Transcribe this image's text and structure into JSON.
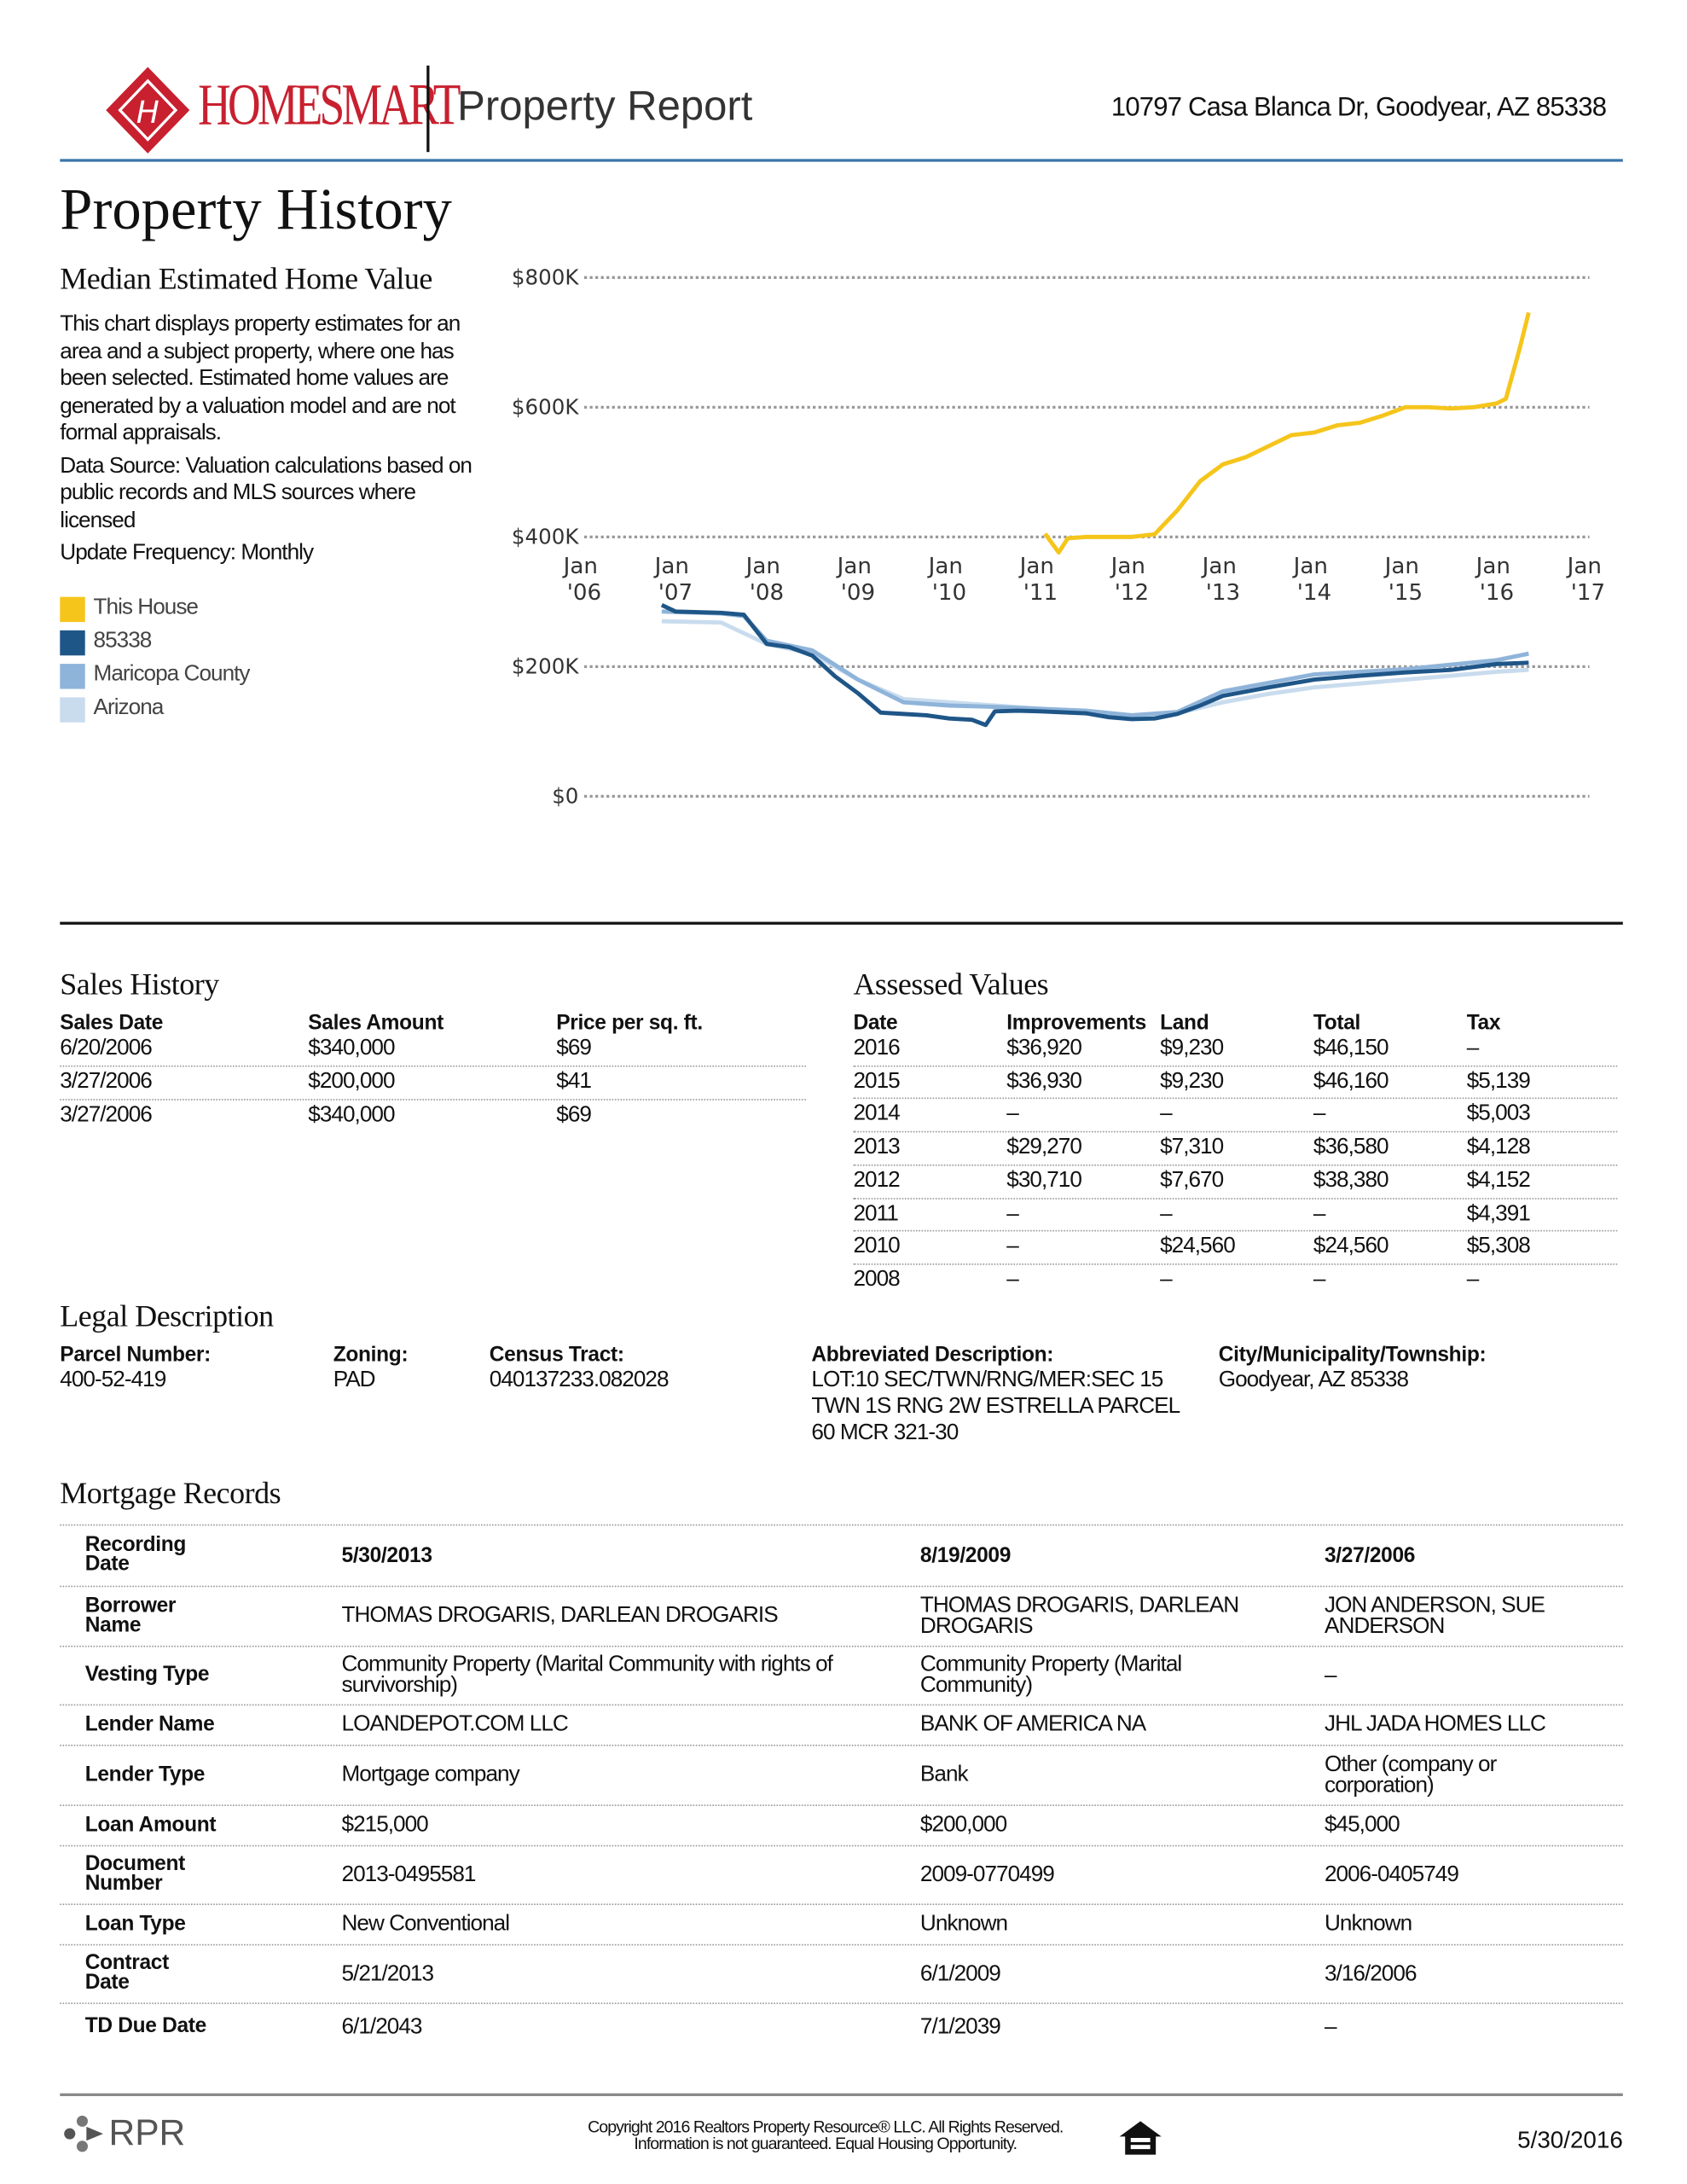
{
  "header": {
    "brand": "HOMESMART",
    "report_title": "Property Report",
    "address": "10797 Casa Blanca Dr, Goodyear, AZ 85338"
  },
  "page_title": "Property History",
  "chart_description": [
    "This chart displays property estimates for an area and a subject property, where one has been selected. Estimated home values are generated by a valuation model and are not formal appraisals.",
    "Data Source: Valuation calculations based on public records and MLS sources where licensed",
    "Update Frequency: Monthly"
  ],
  "chart_data": {
    "type": "line",
    "title": "Median Estimated Home Value",
    "xlim": [
      2006,
      2017
    ],
    "xticks": [
      {
        "value": 2006,
        "label": "Jan '06"
      },
      {
        "value": 2007,
        "label": "Jan '07"
      },
      {
        "value": 2008,
        "label": "Jan '08"
      },
      {
        "value": 2009,
        "label": "Jan '09"
      },
      {
        "value": 2010,
        "label": "Jan '10"
      },
      {
        "value": 2011,
        "label": "Jan '11"
      },
      {
        "value": 2012,
        "label": "Jan '12"
      },
      {
        "value": 2013,
        "label": "Jan '13"
      },
      {
        "value": 2014,
        "label": "Jan '14"
      },
      {
        "value": 2015,
        "label": "Jan '15"
      },
      {
        "value": 2016,
        "label": "Jan '16"
      },
      {
        "value": 2017,
        "label": "Jan '17"
      }
    ],
    "ylim": [
      0,
      800000
    ],
    "yticks": [
      {
        "value": 0,
        "label": "$0"
      },
      {
        "value": 200000,
        "label": "$200K"
      },
      {
        "value": 400000,
        "label": "$400K"
      },
      {
        "value": 600000,
        "label": "$600K"
      },
      {
        "value": 800000,
        "label": "$800K"
      }
    ],
    "grid": true,
    "series": [
      {
        "name": "Arizona",
        "color": "#c9dcee",
        "x": [
          2006.85,
          2007.5,
          2008.0,
          2008.5,
          2009.0,
          2009.5,
          2010.0,
          2010.5,
          2011.0,
          2011.5,
          2012.0,
          2012.5,
          2013.0,
          2013.5,
          2014.0,
          2014.5,
          2015.0,
          2015.5,
          2016.0,
          2016.35
        ],
        "values": [
          270000,
          268000,
          235000,
          220000,
          180000,
          150000,
          145000,
          140000,
          135000,
          130000,
          125000,
          128000,
          145000,
          158000,
          168000,
          174000,
          180000,
          186000,
          192000,
          195000
        ]
      },
      {
        "name": "Maricopa County",
        "color": "#8fb4da",
        "x": [
          2006.85,
          2007.5,
          2007.75,
          2008.0,
          2008.5,
          2009.0,
          2009.5,
          2010.0,
          2010.5,
          2011.0,
          2011.5,
          2012.0,
          2012.5,
          2013.0,
          2013.5,
          2014.0,
          2014.5,
          2015.0,
          2015.5,
          2016.0,
          2016.35
        ],
        "values": [
          285000,
          282000,
          278000,
          240000,
          225000,
          180000,
          145000,
          140000,
          138000,
          135000,
          132000,
          125000,
          130000,
          162000,
          175000,
          188000,
          192000,
          196000,
          203000,
          210000,
          220000
        ]
      },
      {
        "name": "85338",
        "color": "#1f5688",
        "x": [
          2006.85,
          2007.0,
          2007.5,
          2007.75,
          2008.0,
          2008.25,
          2008.5,
          2008.75,
          2009.0,
          2009.25,
          2009.5,
          2009.75,
          2010.0,
          2010.25,
          2010.4,
          2010.5,
          2010.75,
          2011.0,
          2011.5,
          2011.75,
          2012.0,
          2012.25,
          2012.5,
          2012.75,
          2013.0,
          2013.5,
          2014.0,
          2014.5,
          2015.0,
          2015.5,
          2016.0,
          2016.35
        ],
        "values": [
          295000,
          285000,
          283000,
          280000,
          235000,
          230000,
          217000,
          185000,
          159000,
          129000,
          127000,
          125000,
          120000,
          118000,
          110000,
          131000,
          132000,
          131000,
          128000,
          122000,
          119000,
          120000,
          127000,
          140000,
          155000,
          168000,
          180000,
          186000,
          191000,
          195000,
          204000,
          206000
        ]
      },
      {
        "name": "This House",
        "color": "#f5c51c",
        "x": [
          2011.05,
          2011.2,
          2011.3,
          2011.5,
          2012.0,
          2012.25,
          2012.5,
          2012.75,
          2013.0,
          2013.25,
          2013.5,
          2013.75,
          2014.0,
          2014.25,
          2014.5,
          2014.75,
          2015.0,
          2015.25,
          2015.5,
          2015.75,
          2016.0,
          2016.1,
          2016.25,
          2016.35
        ],
        "values": [
          405000,
          376000,
          398000,
          400000,
          400000,
          404000,
          441000,
          486000,
          512000,
          523000,
          540000,
          557000,
          561000,
          572000,
          576000,
          587000,
          600000,
          600000,
          598000,
          600000,
          606000,
          613000,
          690000,
          746000
        ]
      }
    ]
  },
  "legend_order": [
    "This House",
    "85338",
    "Maricopa County",
    "Arizona"
  ],
  "sales_history": {
    "title": "Sales History",
    "columns": [
      "Sales Date",
      "Sales Amount",
      "Price per sq. ft."
    ],
    "rows": [
      [
        "6/20/2006",
        "$340,000",
        "$69"
      ],
      [
        "3/27/2006",
        "$200,000",
        "$41"
      ],
      [
        "3/27/2006",
        "$340,000",
        "$69"
      ]
    ]
  },
  "assessed_values": {
    "title": "Assessed Values",
    "columns": [
      "Date",
      "Improvements",
      "Land",
      "Total",
      "Tax"
    ],
    "rows": [
      [
        "2016",
        "$36,920",
        "$9,230",
        "$46,150",
        "–"
      ],
      [
        "2015",
        "$36,930",
        "$9,230",
        "$46,160",
        "$5,139"
      ],
      [
        "2014",
        "–",
        "–",
        "–",
        "$5,003"
      ],
      [
        "2013",
        "$29,270",
        "$7,310",
        "$36,580",
        "$4,128"
      ],
      [
        "2012",
        "$30,710",
        "$7,670",
        "$38,380",
        "$4,152"
      ],
      [
        "2011",
        "–",
        "–",
        "–",
        "$4,391"
      ],
      [
        "2010",
        "–",
        "$24,560",
        "$24,560",
        "$5,308"
      ],
      [
        "2008",
        "–",
        "–",
        "–",
        "–"
      ]
    ]
  },
  "legal_description": {
    "title": "Legal Description",
    "fields": [
      {
        "label": "Parcel Number:",
        "value": "400-52-419"
      },
      {
        "label": "Zoning:",
        "value": "PAD"
      },
      {
        "label": "Census Tract:",
        "value": "040137233.082028"
      },
      {
        "label": "Abbreviated Description:",
        "value": "LOT:10 SEC/TWN/RNG/MER:SEC 15 TWN 1S RNG 2W ESTRELLA PARCEL 60 MCR 321-30"
      },
      {
        "label": "City/Municipality/Township:",
        "value": "Goodyear, AZ 85338"
      }
    ]
  },
  "mortgage_records": {
    "title": "Mortgage Records",
    "rows": [
      {
        "label": "Recording Date",
        "values": [
          "5/30/2013",
          "8/19/2009",
          "3/27/2006"
        ]
      },
      {
        "label": "Borrower Name",
        "values": [
          "THOMAS DROGARIS, DARLEAN DROGARIS",
          "THOMAS DROGARIS, DARLEAN DROGARIS",
          "JON ANDERSON, SUE ANDERSON"
        ]
      },
      {
        "label": "Vesting Type",
        "values": [
          "Community Property (Marital Community with rights of survivorship)",
          "Community Property (Marital Community)",
          "–"
        ]
      },
      {
        "label": "Lender Name",
        "values": [
          "LOANDEPOT.COM LLC",
          "BANK OF AMERICA NA",
          "JHL JADA HOMES LLC"
        ]
      },
      {
        "label": "Lender Type",
        "values": [
          "Mortgage company",
          "Bank",
          "Other (company or corporation)"
        ]
      },
      {
        "label": "Loan Amount",
        "values": [
          "$215,000",
          "$200,000",
          "$45,000"
        ]
      },
      {
        "label": "Document Number",
        "values": [
          "2013-0495581",
          "2009-0770499",
          "2006-0405749"
        ]
      },
      {
        "label": "Loan Type",
        "values": [
          "New Conventional",
          "Unknown",
          "Unknown"
        ]
      },
      {
        "label": "Contract Date",
        "values": [
          "5/21/2013",
          "6/1/2009",
          "3/16/2006"
        ]
      },
      {
        "label": "TD Due Date",
        "values": [
          "6/1/2043",
          "7/1/2039",
          "–"
        ]
      }
    ]
  },
  "footer": {
    "logo": "RPR",
    "copyright": [
      "Copyright 2016 Realtors Property Resource® LLC. All Rights Reserved.",
      "Information is not guaranteed. Equal Housing Opportunity."
    ],
    "date": "5/30/2016"
  }
}
